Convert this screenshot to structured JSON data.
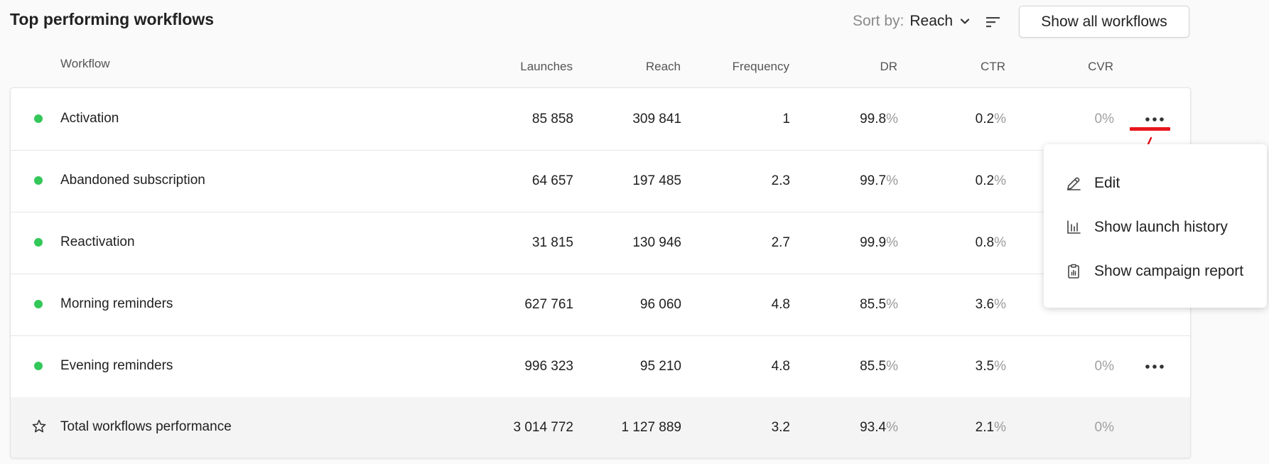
{
  "header": {
    "title": "Top performing workflows",
    "sort_label": "Sort by:",
    "sort_value": "Reach",
    "show_all_label": "Show all workflows"
  },
  "columns": {
    "workflow": "Workflow",
    "launches": "Launches",
    "reach": "Reach",
    "frequency": "Frequency",
    "dr": "DR",
    "ctr": "CTR",
    "cvr": "CVR"
  },
  "rows": [
    {
      "name": "Activation",
      "launches": "85 858",
      "reach": "309 841",
      "frequency": "1",
      "dr": "99.8",
      "ctr": "0.2",
      "cvr": "0",
      "status": "active"
    },
    {
      "name": "Abandoned subscription",
      "launches": "64 657",
      "reach": "197 485",
      "frequency": "2.3",
      "dr": "99.7",
      "ctr": "0.2",
      "cvr": "",
      "status": "active"
    },
    {
      "name": "Reactivation",
      "launches": "31 815",
      "reach": "130 946",
      "frequency": "2.7",
      "dr": "99.9",
      "ctr": "0.8",
      "cvr": "",
      "status": "active"
    },
    {
      "name": "Morning reminders",
      "launches": "627 761",
      "reach": "96 060",
      "frequency": "4.8",
      "dr": "85.5",
      "ctr": "3.6",
      "cvr": "",
      "status": "active"
    },
    {
      "name": "Evening reminders",
      "launches": "996 323",
      "reach": "95 210",
      "frequency": "4.8",
      "dr": "85.5",
      "ctr": "3.5",
      "cvr": "0",
      "status": "active"
    }
  ],
  "total": {
    "name": "Total workflows performance",
    "launches": "3 014 772",
    "reach": "1 127 889",
    "frequency": "3.2",
    "dr": "93.4",
    "ctr": "2.1",
    "cvr": "0"
  },
  "percent_sign": "%",
  "context_menu": {
    "items": [
      {
        "label": "Edit",
        "icon": "pencil-icon"
      },
      {
        "label": "Show launch history",
        "icon": "bar-chart-icon"
      },
      {
        "label": "Show campaign report",
        "icon": "clipboard-report-icon"
      }
    ]
  },
  "colors": {
    "status_active": "#34c759",
    "annotation": "#e8161c",
    "muted_percent": "#9a9a9a"
  }
}
